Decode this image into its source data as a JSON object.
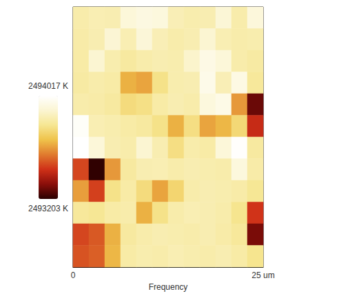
{
  "chart_data": {
    "type": "heatmap",
    "xlabel": "Frequency",
    "xlim": [
      0,
      25
    ],
    "xticks": [
      0,
      {
        "value": 25,
        "label": "25 um"
      }
    ],
    "tick_labels": "x",
    "cells": [
      [
        2493830,
        2493845,
        2493840,
        2493920,
        2493940,
        2493930,
        2493850,
        2493835,
        2493840,
        2493910,
        2493830,
        2493925
      ],
      [
        2493825,
        2493840,
        2493905,
        2493845,
        2493915,
        2493850,
        2493830,
        2493840,
        2493900,
        2493845,
        2493830,
        2493835
      ],
      [
        2493820,
        2493900,
        2493835,
        2493810,
        2493830,
        2493840,
        2493835,
        2493890,
        2493950,
        2493920,
        2493830,
        2493815
      ],
      [
        2493815,
        2493830,
        2493820,
        2493640,
        2493620,
        2493770,
        2493835,
        2493840,
        2493960,
        2493850,
        2493945,
        2493800
      ],
      [
        2493830,
        2493825,
        2493810,
        2493750,
        2493765,
        2493820,
        2493840,
        2493830,
        2493930,
        2493955,
        2493600,
        2493280
      ],
      [
        2494000,
        2493845,
        2493835,
        2493820,
        2493810,
        2493770,
        2493640,
        2493760,
        2493620,
        2493650,
        2493740,
        2493420
      ],
      [
        2494017,
        2493920,
        2493840,
        2493830,
        2493900,
        2493840,
        2493760,
        2493830,
        2493820,
        2493920,
        2494010,
        2493810
      ],
      [
        2493470,
        2493210,
        2493600,
        2493810,
        2493840,
        2493845,
        2493830,
        2493840,
        2493835,
        2493830,
        2493930,
        2493825
      ],
      [
        2493610,
        2493460,
        2493770,
        2493820,
        2493750,
        2493620,
        2493730,
        2493830,
        2493840,
        2493835,
        2493825,
        2493790
      ],
      [
        2493800,
        2493790,
        2493820,
        2493830,
        2493640,
        2493770,
        2493830,
        2493845,
        2493840,
        2493830,
        2493780,
        2493440
      ],
      [
        2493470,
        2493500,
        2493640,
        2493810,
        2493830,
        2493840,
        2493835,
        2493830,
        2493840,
        2493825,
        2493800,
        2493300
      ],
      [
        2493490,
        2493510,
        2493650,
        2493820,
        2493835,
        2493830,
        2493845,
        2493835,
        2493830,
        2493840,
        2493820,
        2493780
      ]
    ],
    "colorbar": {
      "range": [
        2493203,
        2494017
      ],
      "ticks": [
        {
          "value": 2493203,
          "label": "2493203 K"
        },
        {
          "value": 2494017,
          "label": "2494017 K"
        }
      ]
    }
  }
}
